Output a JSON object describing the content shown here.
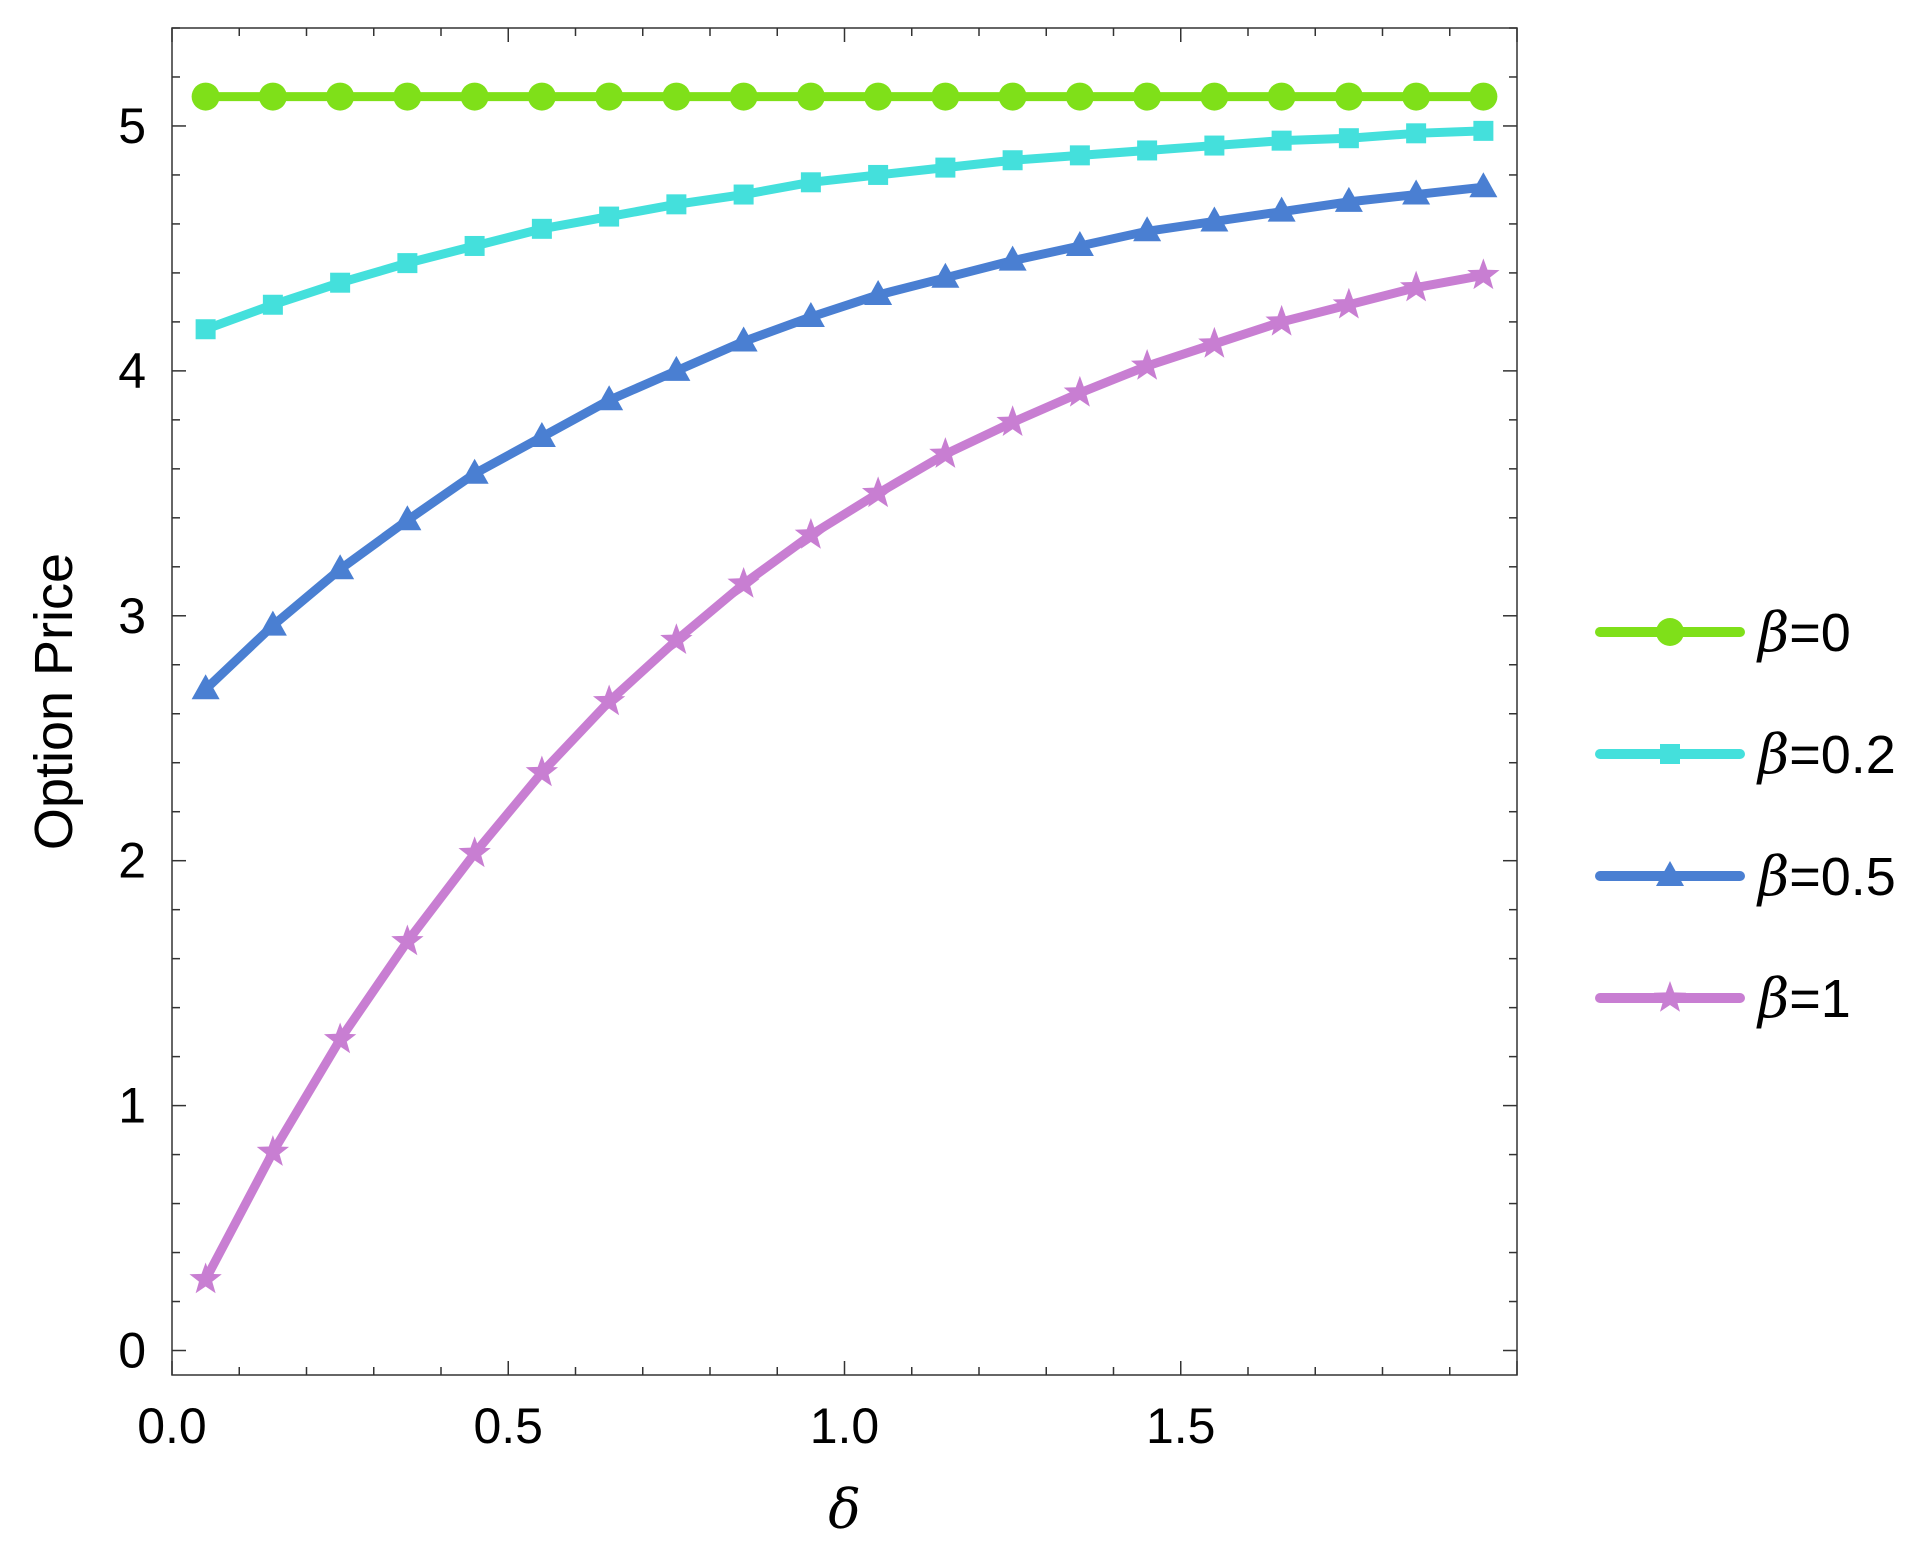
{
  "chart_data": {
    "type": "line",
    "xlabel": "δ",
    "ylabel": "Option Price",
    "xlim": [
      0,
      2.0
    ],
    "ylim": [
      -0.1,
      5.4
    ],
    "x_ticks": [
      "0.0",
      "0.5",
      "1.0",
      "1.5"
    ],
    "y_ticks": [
      "0",
      "1",
      "2",
      "3",
      "4",
      "5"
    ],
    "legend_position": "right",
    "grid": false,
    "x": [
      0.05,
      0.15,
      0.25,
      0.35,
      0.45,
      0.55,
      0.65,
      0.75,
      0.85,
      0.95,
      1.05,
      1.15,
      1.25,
      1.35,
      1.45,
      1.55,
      1.65,
      1.75,
      1.85,
      1.95
    ],
    "series": [
      {
        "name": "β=0",
        "color": "#7fe019",
        "marker": "circle",
        "values": [
          5.12,
          5.12,
          5.12,
          5.12,
          5.12,
          5.12,
          5.12,
          5.12,
          5.12,
          5.12,
          5.12,
          5.12,
          5.12,
          5.12,
          5.12,
          5.12,
          5.12,
          5.12,
          5.12,
          5.12
        ]
      },
      {
        "name": "β=0.2",
        "color": "#44e0dc",
        "marker": "square",
        "values": [
          4.17,
          4.27,
          4.36,
          4.44,
          4.51,
          4.58,
          4.63,
          4.68,
          4.72,
          4.77,
          4.8,
          4.83,
          4.86,
          4.88,
          4.9,
          4.92,
          4.94,
          4.95,
          4.97,
          4.98
        ]
      },
      {
        "name": "β=0.5",
        "color": "#4a7fd2",
        "marker": "triangle",
        "values": [
          2.7,
          2.96,
          3.19,
          3.39,
          3.58,
          3.73,
          3.88,
          4.0,
          4.12,
          4.22,
          4.31,
          4.38,
          4.45,
          4.51,
          4.57,
          4.61,
          4.65,
          4.69,
          4.72,
          4.75
        ]
      },
      {
        "name": "β=1",
        "color": "#c87ed2",
        "marker": "star",
        "values": [
          0.29,
          0.81,
          1.27,
          1.67,
          2.03,
          2.36,
          2.65,
          2.9,
          3.13,
          3.33,
          3.5,
          3.66,
          3.79,
          3.91,
          4.02,
          4.11,
          4.2,
          4.27,
          4.34,
          4.39
        ]
      }
    ]
  }
}
